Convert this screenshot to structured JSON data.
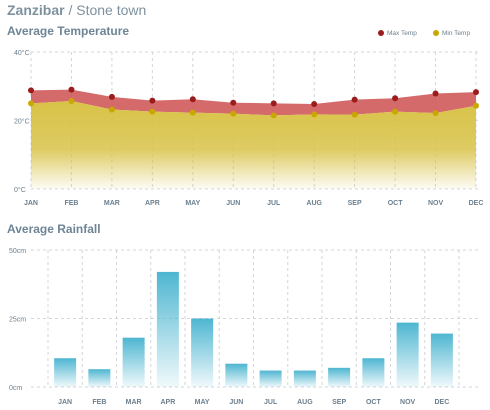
{
  "header": {
    "place": "Zanzibar",
    "separator": "/",
    "town": "Stone town"
  },
  "colors": {
    "max_temp": "#cf5a59",
    "max_dot": "#9b1c1c",
    "min_temp": "#d8c247",
    "min_dot": "#c8a800",
    "rain": "#4eb6d1",
    "grid": "#d0d6db",
    "text": "#6b7f8e"
  },
  "chart_data": [
    {
      "type": "area",
      "title": "Average Temperature",
      "categories": [
        "JAN",
        "FEB",
        "MAR",
        "APR",
        "MAY",
        "JUN",
        "JUL",
        "AUG",
        "SEP",
        "OCT",
        "NOV",
        "DEC"
      ],
      "series": [
        {
          "name": "Max Temp",
          "values": [
            28.8,
            29.0,
            26.9,
            25.8,
            26.2,
            25.2,
            25.0,
            24.8,
            26.1,
            26.5,
            27.9,
            28.3
          ]
        },
        {
          "name": "Min Temp",
          "values": [
            25.0,
            25.7,
            23.2,
            22.6,
            22.3,
            22.0,
            21.5,
            21.8,
            21.7,
            22.6,
            22.2,
            24.3
          ]
        }
      ],
      "yticks": [
        "0°C",
        "20°C",
        "40°C"
      ],
      "ylim": [
        0,
        40
      ],
      "legend_position": "top-right",
      "grid": true
    },
    {
      "type": "bar",
      "title": "Average Rainfall",
      "categories": [
        "JAN",
        "FEB",
        "MAR",
        "APR",
        "MAY",
        "JUN",
        "JUL",
        "AUG",
        "SEP",
        "OCT",
        "NOV",
        "DEC"
      ],
      "values": [
        10.5,
        6.5,
        18,
        42,
        25,
        8.5,
        6,
        6,
        7,
        10.5,
        23.5,
        19.5
      ],
      "yticks": [
        "0cm",
        "25cm",
        "50cm"
      ],
      "ylim": [
        0,
        50
      ],
      "grid": true
    }
  ]
}
